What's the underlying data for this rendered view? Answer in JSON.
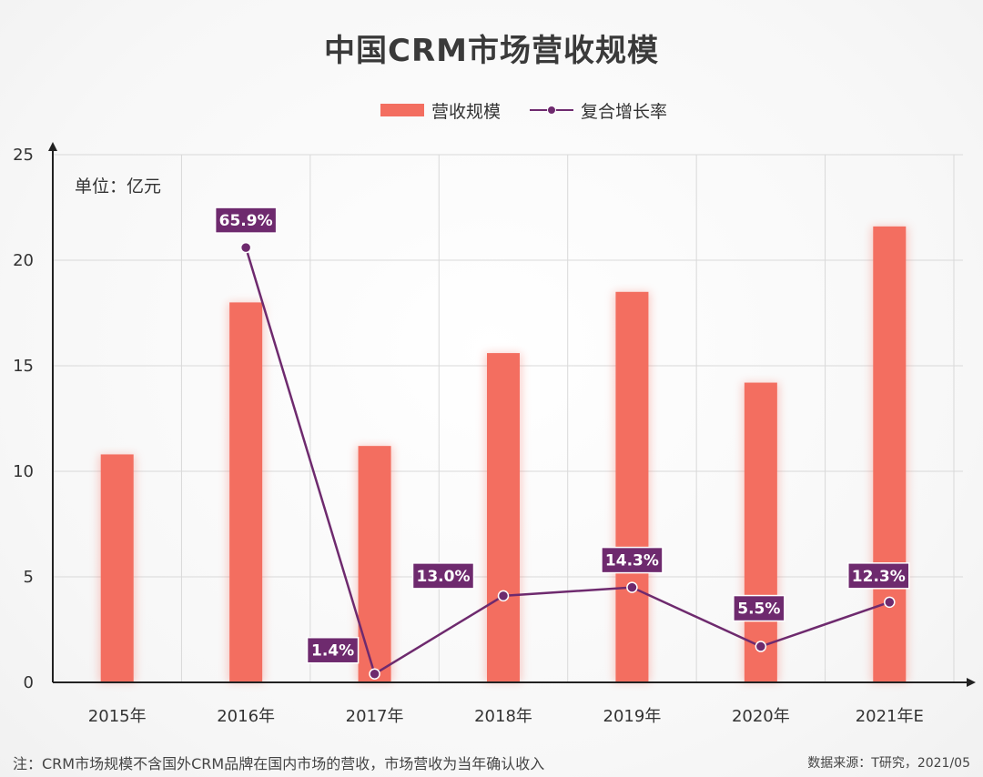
{
  "colors": {
    "bar": "#f36e60",
    "line": "#6e2a6e",
    "label_bg": "#6e2a6e",
    "grid": "#d9d9d9",
    "axis": "#222222"
  },
  "chart_data": {
    "type": "bar",
    "title": "中国CRM市场营收规模",
    "unit_label": "单位：亿元",
    "categories": [
      "2015年",
      "2016年",
      "2017年",
      "2018年",
      "2019年",
      "2020年",
      "2021年E"
    ],
    "ylim": [
      0,
      25
    ],
    "yticks": [
      0,
      5,
      10,
      15,
      20,
      25
    ],
    "grid": true,
    "legend_position": "top-center",
    "series": [
      {
        "name": "营收规模",
        "type": "bar",
        "values": [
          10.8,
          18.0,
          11.2,
          15.6,
          18.5,
          14.2,
          21.6
        ]
      },
      {
        "name": "复合增长率",
        "type": "line",
        "values": [
          null,
          20.6,
          0.4,
          4.1,
          4.5,
          1.7,
          3.8
        ],
        "labels": [
          null,
          "65.9%",
          "1.4%",
          "13.0%",
          "14.3%",
          "5.5%",
          "12.3%"
        ]
      }
    ]
  },
  "footnote": "注：CRM市场规模不含国外CRM品牌在国内市场的营收，市场营收为当年确认收入",
  "source": "数据来源：T研究，2021/05"
}
